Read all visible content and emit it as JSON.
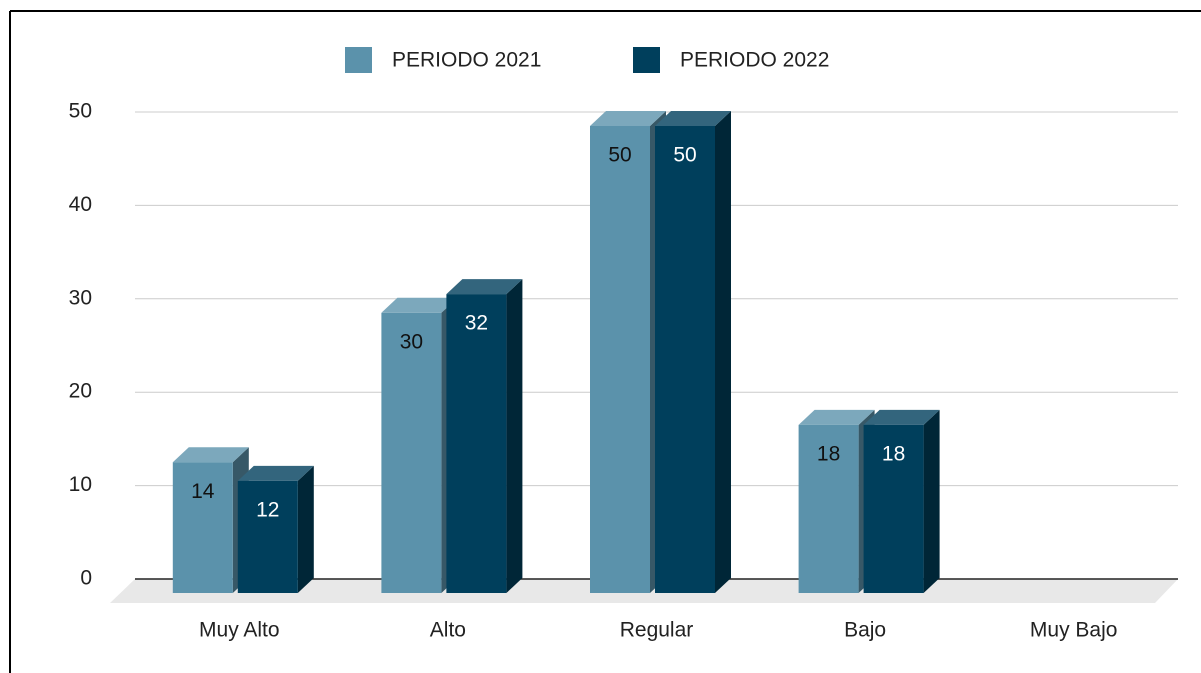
{
  "chart_data": {
    "type": "bar3d",
    "categories": [
      "Muy Alto",
      "Alto",
      "Regular",
      "Bajo",
      "Muy Bajo"
    ],
    "series": [
      {
        "name": "PERIODO 2021",
        "color": "#5b92ab",
        "values": [
          14,
          30,
          50,
          18,
          null
        ]
      },
      {
        "name": "PERIODO 2022",
        "color": "#003f5c",
        "values": [
          12,
          32,
          50,
          18,
          null
        ]
      }
    ],
    "ylim": [
      0,
      50
    ],
    "yticks": [
      0,
      10,
      20,
      30,
      40,
      50
    ],
    "grid": true,
    "legend": "top"
  }
}
